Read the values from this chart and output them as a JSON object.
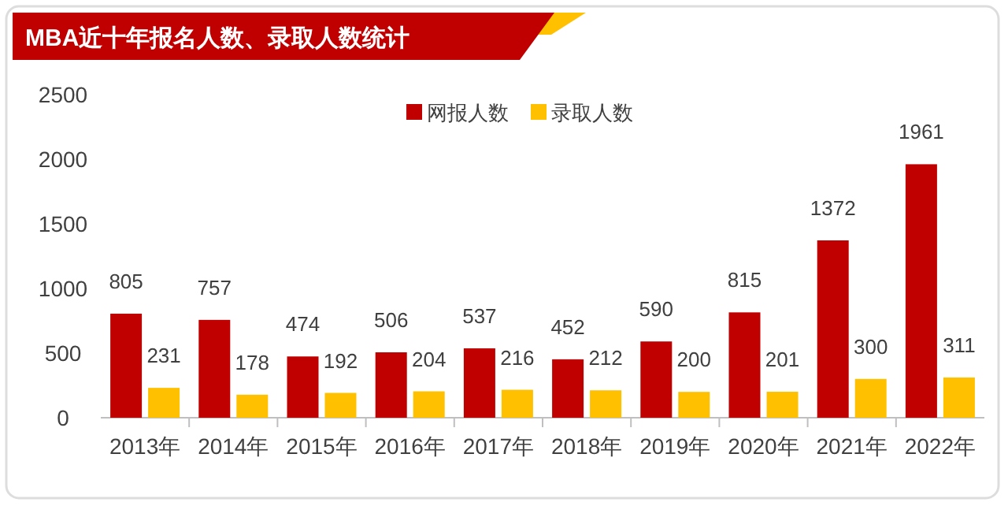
{
  "chart_data": {
    "type": "bar",
    "title": "MBA近十年报名人数、录取人数统计",
    "categories": [
      "2013年",
      "2014年",
      "2015年",
      "2016年",
      "2017年",
      "2018年",
      "2019年",
      "2020年",
      "2021年",
      "2022年"
    ],
    "series": [
      {
        "name": "网报人数",
        "color": "#c00000",
        "values": [
          805,
          757,
          474,
          506,
          537,
          452,
          590,
          815,
          1372,
          1961
        ]
      },
      {
        "name": "录取人数",
        "color": "#ffc000",
        "values": [
          231,
          178,
          192,
          204,
          216,
          212,
          200,
          201,
          300,
          311
        ]
      }
    ],
    "ylim": [
      0,
      2500
    ],
    "yticks": [
      0,
      500,
      1000,
      1500,
      2000,
      2500
    ],
    "data_labels": true,
    "legend": "top",
    "grid": false
  }
}
